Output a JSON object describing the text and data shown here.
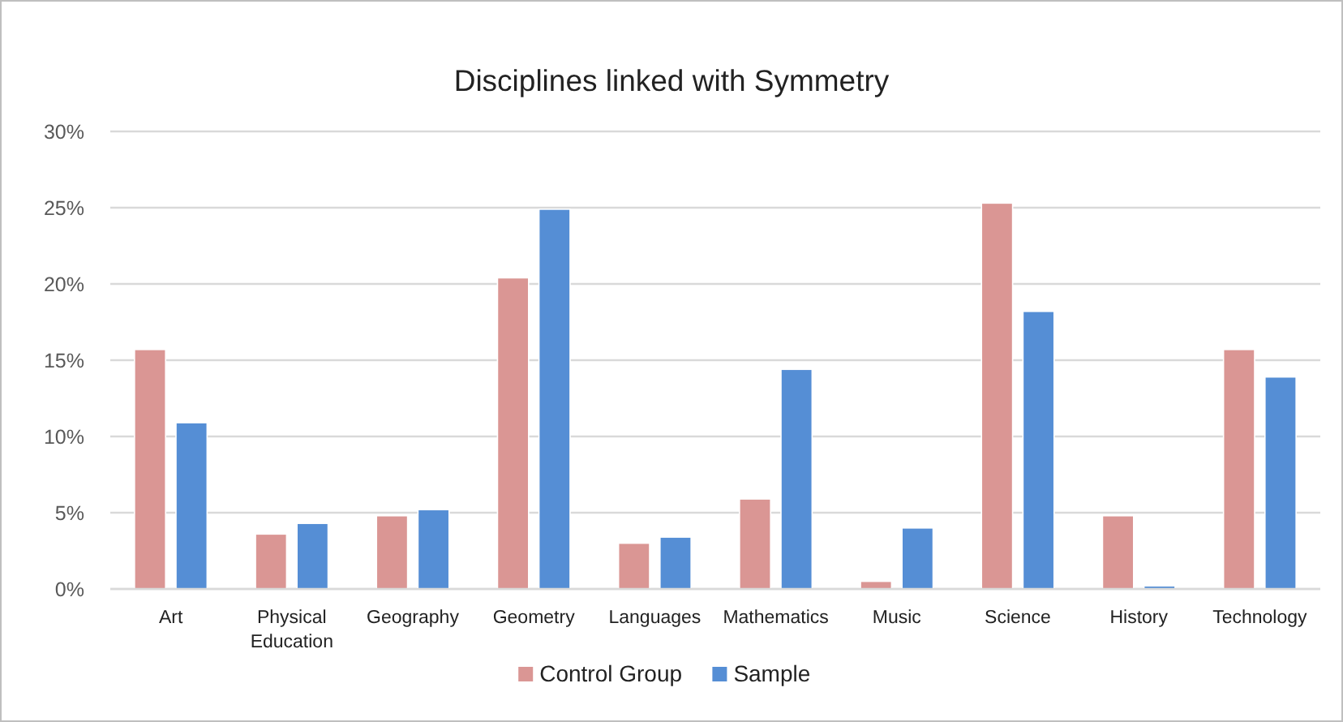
{
  "chart_data": {
    "type": "bar",
    "title": "Disciplines linked with Symmetry",
    "categories": [
      "Art",
      "Physical Education",
      "Geography",
      "Geometry",
      "Languages",
      "Mathematics",
      "Music",
      "Science",
      "History",
      "Technology"
    ],
    "series": [
      {
        "name": "Control Group",
        "color": "#da9694",
        "values": [
          15.7,
          3.6,
          4.8,
          20.4,
          3.0,
          5.9,
          0.5,
          25.3,
          4.8,
          15.7
        ]
      },
      {
        "name": "Sample",
        "color": "#558ed5",
        "values": [
          10.9,
          4.3,
          5.2,
          24.9,
          3.4,
          14.4,
          4.0,
          18.2,
          0.2,
          13.9
        ]
      }
    ],
    "ylim": [
      0,
      30
    ],
    "yticks": [
      {
        "value": 0,
        "label": "0%"
      },
      {
        "value": 5,
        "label": "5%"
      },
      {
        "value": 10,
        "label": "10%"
      },
      {
        "value": 15,
        "label": "15%"
      },
      {
        "value": 20,
        "label": "20%"
      },
      {
        "value": 25,
        "label": "25%"
      },
      {
        "value": 30,
        "label": "30%"
      }
    ],
    "grid": "y",
    "legend": "bottom"
  }
}
